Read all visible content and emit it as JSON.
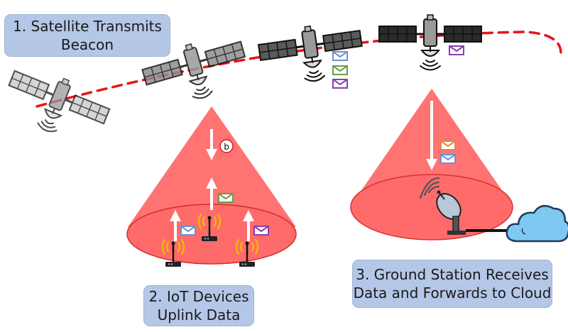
{
  "steps": {
    "step1": {
      "line1": "1. Satellite Transmits",
      "line2": "Beacon"
    },
    "step2": {
      "line1": "2. IoT Devices",
      "line2": "Uplink Data"
    },
    "step3": {
      "line1": "3. Ground Station Receives",
      "line2": "Data and Forwards to Cloud"
    }
  },
  "beacon_marker": "b",
  "colors": {
    "label_bg": "#b4c7e7",
    "orbit": "#e8141b",
    "cone": "#ff5a5a",
    "cloud": "#7ec8f2",
    "envelope_orange": "#d98b3a",
    "envelope_blue": "#6d8fd1",
    "envelope_green": "#6f9a4a",
    "envelope_purple": "#8b3fae"
  },
  "icons": [
    "satellite-icon",
    "envelope-icon",
    "iot-device-icon",
    "satellite-dish-icon",
    "cloud-icon",
    "signal-waves-icon"
  ]
}
